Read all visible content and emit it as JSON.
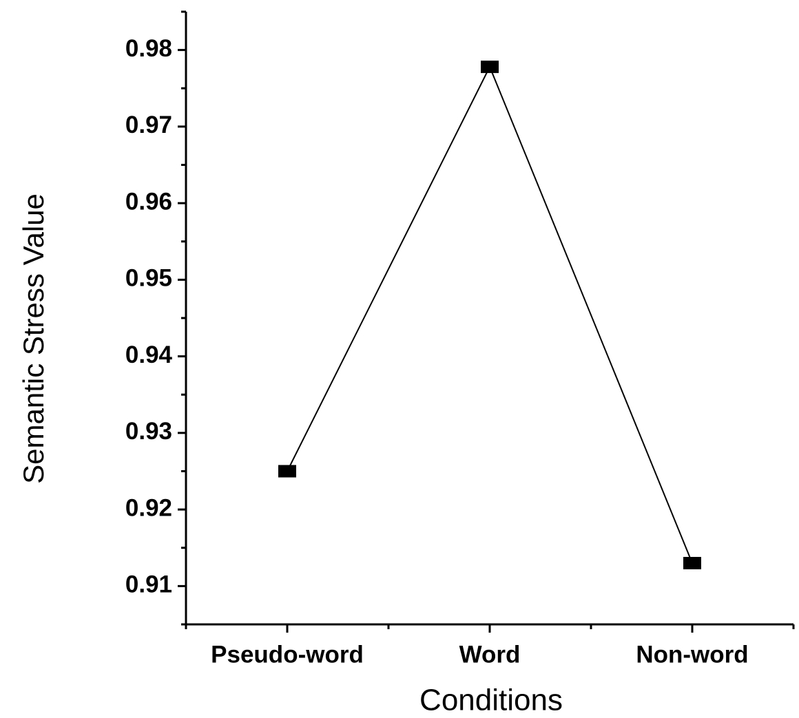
{
  "chart_data": {
    "type": "line",
    "ylabel": "Semantic Stress Value",
    "xlabel": "Conditions",
    "categories": [
      "Pseudo-word",
      "Word",
      "Non-word"
    ],
    "series": [
      {
        "name": "Semantic Stress",
        "color": "#000000",
        "values": [
          0.925,
          0.9778,
          0.913
        ]
      }
    ],
    "ylim": [
      0.905,
      0.985
    ],
    "yticks": [
      0.91,
      0.92,
      0.93,
      0.94,
      0.95,
      0.96,
      0.97,
      0.98
    ]
  }
}
